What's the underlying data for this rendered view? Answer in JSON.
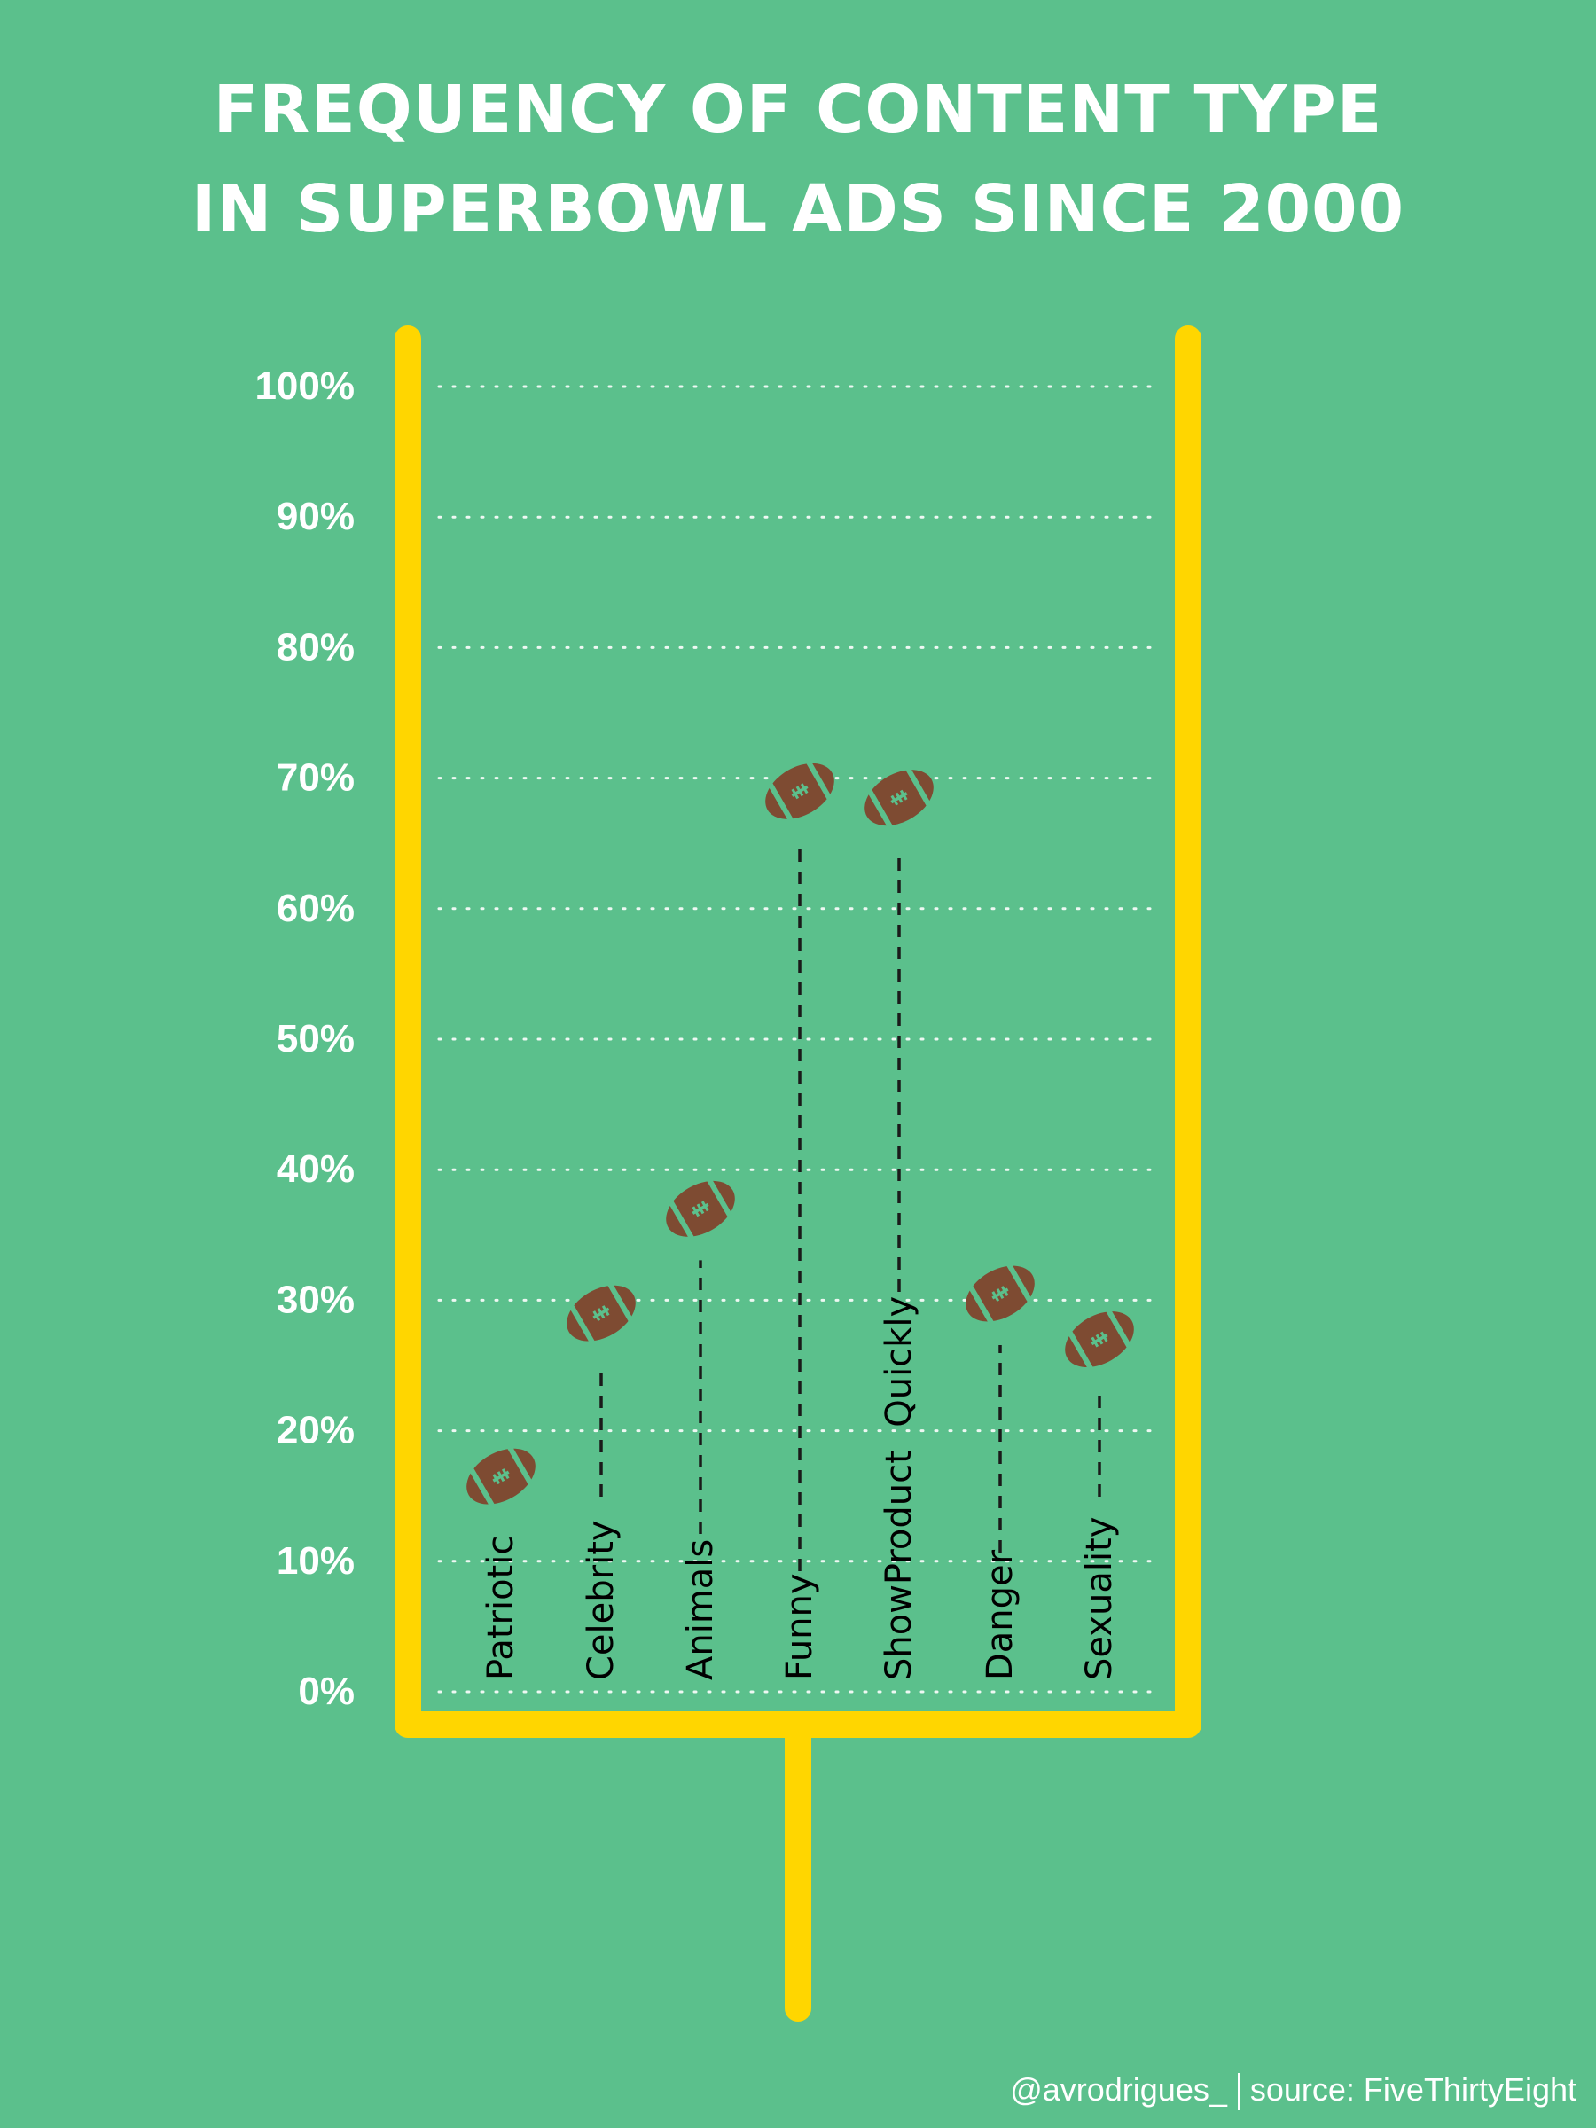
{
  "title": {
    "line1": "FREQUENCY OF CONTENT TYPE",
    "line2": "IN SUPERBOWL ADS SINCE 2000"
  },
  "credit": {
    "author": "@avrodrigues_",
    "source": "source: FiveThirtyEight"
  },
  "colors": {
    "background": "#5bc08c",
    "goalpost": "#ffd600",
    "football": "#7e4b32",
    "football_stripe": "#5bc08c",
    "gridline": "#ffffff",
    "stem": "#1a1a1a",
    "category_label": "#000000"
  },
  "chart_data": {
    "type": "scatter",
    "title": "FREQUENCY OF CONTENT TYPE IN SUPERBOWL ADS SINCE 2000",
    "xlabel": "",
    "ylabel": "",
    "ylim": [
      0,
      100
    ],
    "y_tick_labels": [
      "0%",
      "10%",
      "20%",
      "30%",
      "40%",
      "50%",
      "60%",
      "70%",
      "80%",
      "90%",
      "100%"
    ],
    "y_tick_values": [
      0,
      10,
      20,
      30,
      40,
      50,
      60,
      70,
      80,
      90,
      100
    ],
    "grid": true,
    "legend": "none",
    "marker": "football-icon",
    "categories": [
      "Patriotic",
      "Celebrity",
      "Animals",
      "Funny",
      "ShowProduct  Quickly",
      "Danger",
      "Sexuality"
    ],
    "values": [
      16.5,
      29,
      37,
      69,
      68.5,
      30.5,
      27
    ]
  }
}
